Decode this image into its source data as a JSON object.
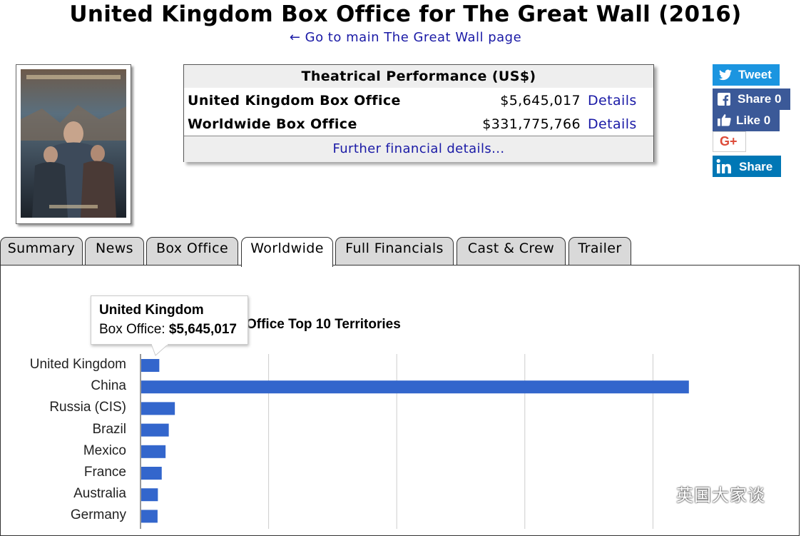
{
  "page": {
    "title": "United Kingdom Box Office for The Great Wall (2016)",
    "main_link": "← Go to main The Great Wall page"
  },
  "performance": {
    "header": "Theatrical Performance (US$)",
    "rows": [
      {
        "label": "United Kingdom Box Office",
        "value": "$5,645,017",
        "link": "Details"
      },
      {
        "label": "Worldwide Box Office",
        "value": "$331,775,766",
        "link": "Details"
      }
    ],
    "footer_link": "Further financial details..."
  },
  "social": {
    "tweet": "Tweet",
    "fb_share": "Share 0",
    "fb_like": "Like 0",
    "gplus": "G+",
    "linkedin": "Share"
  },
  "tabs": [
    "Summary",
    "News",
    "Box Office",
    "Worldwide",
    "Full Financials",
    "Cast & Crew",
    "Trailer"
  ],
  "active_tab": "Worldwide",
  "tooltip": {
    "title": "United Kingdom",
    "label": "Box Office: ",
    "value": "$5,645,017"
  },
  "chart_data": {
    "type": "bar",
    "orientation": "horizontal",
    "title": "Office Top 10 Territories",
    "categories": [
      "United Kingdom",
      "China",
      "Russia (CIS)",
      "Brazil",
      "Mexico",
      "France",
      "Australia",
      "Germany"
    ],
    "values": [
      5645017,
      171000000,
      10500000,
      8600000,
      7600000,
      6400000,
      5200000,
      5100000
    ],
    "xlim": [
      0,
      200000000
    ],
    "grid": true,
    "color": "#3366cc"
  },
  "watermark": "英国大家谈",
  "colors": {
    "link": "#1a1aa6",
    "tweet": "#1b95e0",
    "facebook": "#3b5998",
    "linkedin": "#0077b5",
    "gplus": "#dd4b39",
    "bar": "#3366cc"
  }
}
